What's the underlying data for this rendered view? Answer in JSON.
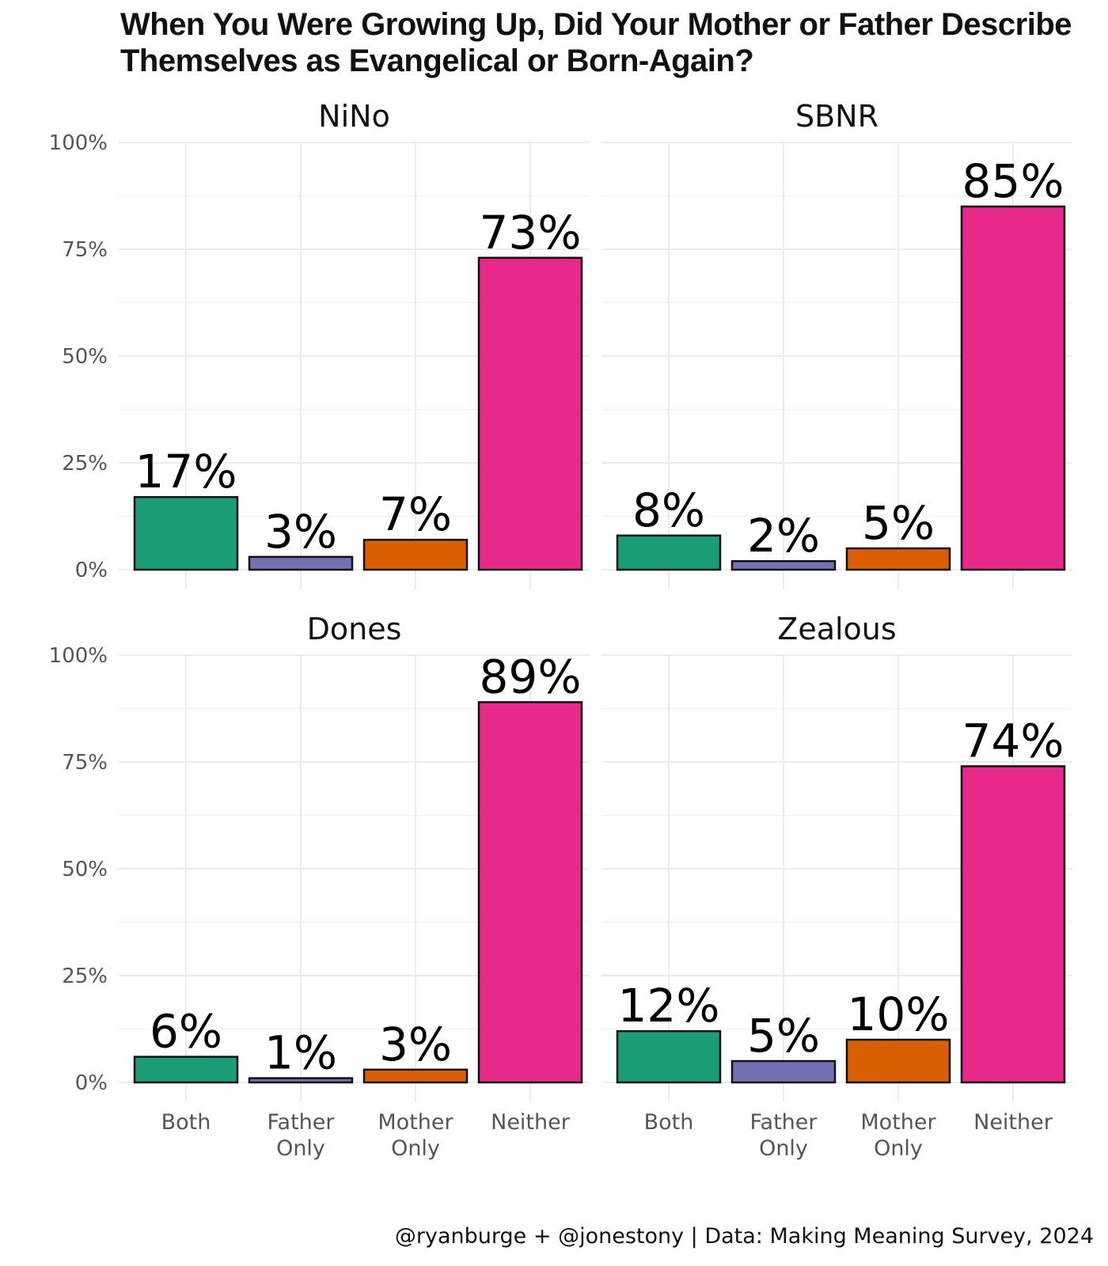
{
  "chart_data": {
    "type": "bar",
    "title": "When You Were Growing Up, Did Your Mother or Father Describe Themselves as Evangelical or Born-Again?",
    "caption": "@ryanburge + @jonestony | Data: Making Meaning Survey, 2024",
    "categories": [
      "Both",
      "Father Only",
      "Mother Only",
      "Neither"
    ],
    "colors": [
      "#1b9e77",
      "#7570b3",
      "#d95f02",
      "#e7298a"
    ],
    "ylim": [
      0,
      100
    ],
    "yticks": [
      0,
      25,
      50,
      75,
      100
    ],
    "ytick_labels": [
      "0%",
      "25%",
      "50%",
      "75%",
      "100%"
    ],
    "grid": true,
    "panels": [
      {
        "name": "NiNo",
        "values": [
          17,
          3,
          7,
          73
        ],
        "labels": [
          "17%",
          "3%",
          "7%",
          "73%"
        ]
      },
      {
        "name": "SBNR",
        "values": [
          8,
          2,
          5,
          85
        ],
        "labels": [
          "8%",
          "2%",
          "5%",
          "85%"
        ]
      },
      {
        "name": "Dones",
        "values": [
          6,
          1,
          3,
          89
        ],
        "labels": [
          "6%",
          "1%",
          "3%",
          "89%"
        ]
      },
      {
        "name": "Zealous",
        "values": [
          12,
          5,
          10,
          74
        ],
        "labels": [
          "12%",
          "5%",
          "10%",
          "74%"
        ]
      }
    ]
  }
}
